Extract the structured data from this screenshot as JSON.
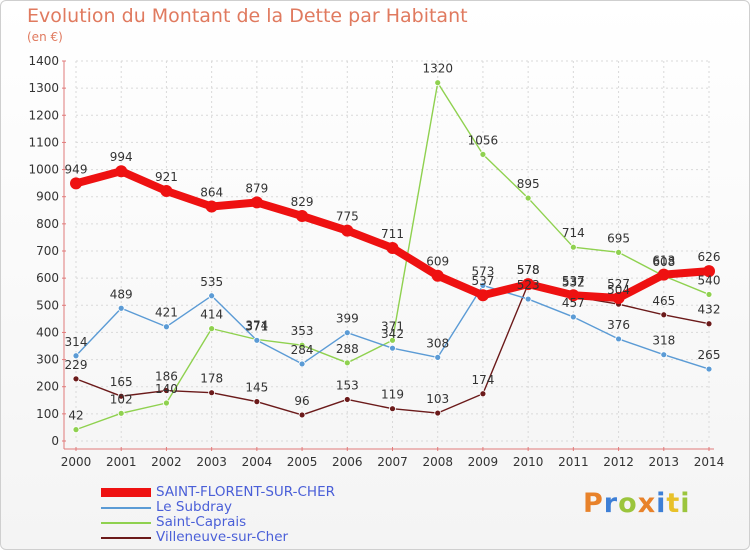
{
  "header": {
    "title": "Evolution du Montant de la Dette par Habitant",
    "subtitle": "(en €)"
  },
  "logo": {
    "text": "Proxiti",
    "colors": [
      "#e8822a",
      "#3d7fd6",
      "#9bc53d",
      "#e8822a",
      "#3d7fd6",
      "#e8c12a",
      "#9bc53d"
    ]
  },
  "colors": {
    "SAINT-FLORENT-SUR-CHER": "#ee1111",
    "Le Subdray": "#5b9bd5",
    "Saint-Caprais": "#8fd14f",
    "Villeneuve-sur-Cher": "#6b1a1a"
  },
  "chart_data": {
    "type": "line",
    "title": "Evolution du Montant de la Dette par Habitant",
    "ylabel": "(en €)",
    "xlabel": "",
    "x": [
      2000,
      2001,
      2002,
      2003,
      2004,
      2005,
      2006,
      2007,
      2008,
      2009,
      2010,
      2011,
      2012,
      2013,
      2014
    ],
    "ylim": [
      0,
      1400
    ],
    "yticks": [
      0,
      100,
      200,
      300,
      400,
      500,
      600,
      700,
      800,
      900,
      1000,
      1100,
      1200,
      1300,
      1400
    ],
    "grid": true,
    "legend_position": "bottom-left",
    "series": [
      {
        "name": "SAINT-FLORENT-SUR-CHER",
        "values": [
          949,
          994,
          921,
          864,
          879,
          829,
          775,
          711,
          609,
          537,
          578,
          537,
          527,
          613,
          626
        ]
      },
      {
        "name": "Le Subdray",
        "values": [
          314,
          489,
          421,
          535,
          371,
          284,
          399,
          342,
          308,
          573,
          523,
          457,
          376,
          318,
          265
        ]
      },
      {
        "name": "Saint-Caprais",
        "values": [
          42,
          102,
          140,
          414,
          374,
          353,
          288,
          371,
          1320,
          1056,
          895,
          714,
          695,
          608,
          540
        ]
      },
      {
        "name": "Villeneuve-sur-Cher",
        "values": [
          229,
          165,
          186,
          178,
          145,
          96,
          153,
          119,
          103,
          174,
          578,
          532,
          504,
          465,
          432
        ]
      }
    ]
  }
}
